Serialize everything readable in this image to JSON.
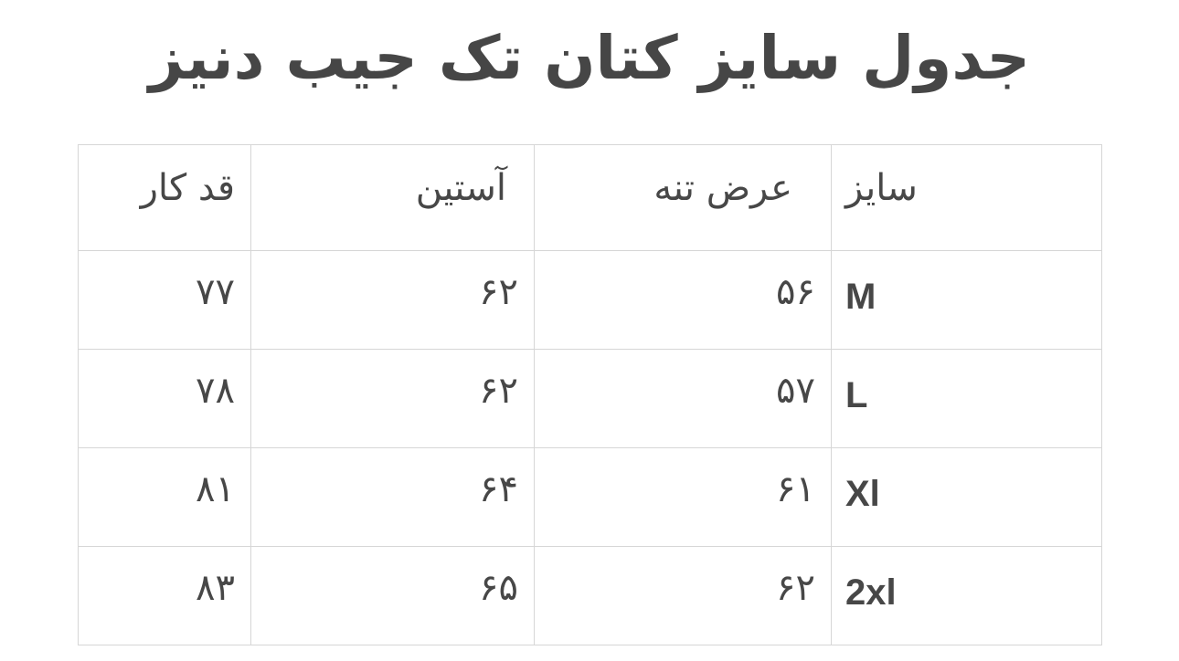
{
  "title": "جدول سایز کتان تک جیب دنیز",
  "table": {
    "headers": [
      "سایز",
      "عرض تنه",
      "آستین",
      "قد کار"
    ],
    "rows": [
      [
        "M",
        "۵۶",
        "۶۲",
        "۷۷"
      ],
      [
        "L",
        "۵۷",
        "۶۲",
        "۷۸"
      ],
      [
        "Xl",
        "۶۱",
        "۶۴",
        "۸۱"
      ],
      [
        "2xl",
        "۶۲",
        "۶۵",
        "۸۳"
      ]
    ]
  }
}
